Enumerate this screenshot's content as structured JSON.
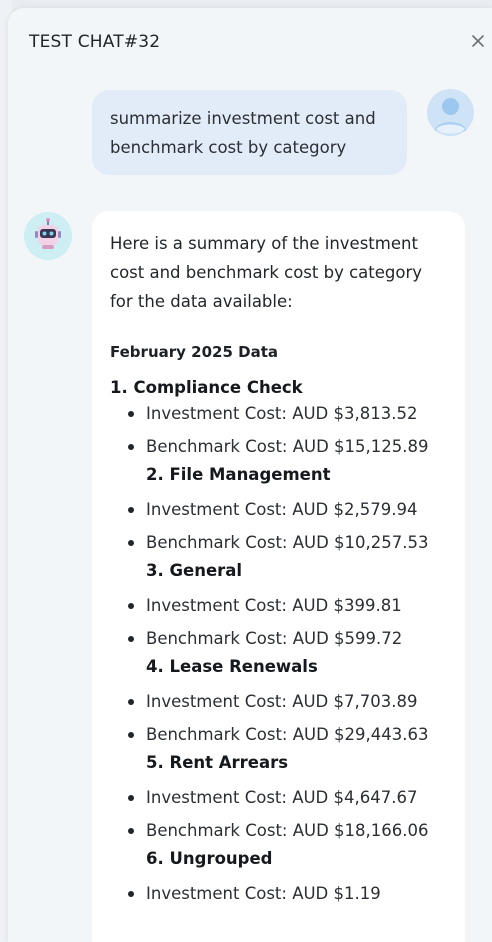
{
  "header": {
    "title": "TEST CHAT#32",
    "close_label": "×"
  },
  "conversation": {
    "user_message": "summarize investment cost and benchmark cost by category",
    "assistant": {
      "intro": "Here is a summary of the investment cost and benchmark cost by category for the data available:",
      "period_heading": "February 2025 Data",
      "categories": [
        {
          "heading": "1. Compliance Check",
          "investment": "Investment Cost: AUD $3,813.52",
          "benchmark": "Benchmark Cost: AUD $15,125.89"
        },
        {
          "heading": "2. File Management",
          "investment": "Investment Cost: AUD $2,579.94",
          "benchmark": "Benchmark Cost: AUD $10,257.53"
        },
        {
          "heading": "3. General",
          "investment": "Investment Cost: AUD $399.81",
          "benchmark": "Benchmark Cost: AUD $599.72"
        },
        {
          "heading": "4. Lease Renewals",
          "investment": "Investment Cost: AUD $7,703.89",
          "benchmark": "Benchmark Cost: AUD $29,443.63"
        },
        {
          "heading": "5. Rent Arrears",
          "investment": "Investment Cost: AUD $4,647.67",
          "benchmark": "Benchmark Cost: AUD $18,166.06"
        },
        {
          "heading": "6. Ungrouped",
          "investment": "Investment Cost: AUD $1.19"
        }
      ]
    }
  },
  "colors": {
    "user_bubble": "#e2ecf9",
    "assistant_bubble": "#ffffff",
    "panel_bg": "#f3f6f9"
  }
}
